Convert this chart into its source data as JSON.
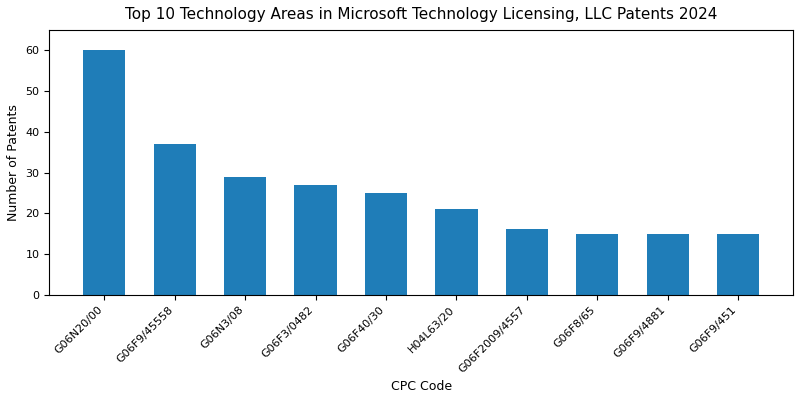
{
  "title": "Top 10 Technology Areas in Microsoft Technology Licensing, LLC Patents 2024",
  "xlabel": "CPC Code",
  "ylabel": "Number of Patents",
  "categories": [
    "G06N20/00",
    "G06F9/45558",
    "G06N3/08",
    "G06F3/0482",
    "G06F40/30",
    "H04L63/20",
    "G06F2009/4557",
    "G06F8/65",
    "G06F9/4881",
    "G06F9/451"
  ],
  "values": [
    60,
    37,
    29,
    27,
    25,
    21,
    16,
    15,
    15,
    15
  ],
  "bar_color": "#1f7db8",
  "ylim": [
    0,
    65
  ],
  "yticks": [
    0,
    10,
    20,
    30,
    40,
    50,
    60
  ],
  "title_fontsize": 11,
  "label_fontsize": 9,
  "tick_fontsize": 8,
  "background_color": "#ffffff",
  "fig_width": 8.0,
  "fig_height": 4.0,
  "dpi": 100
}
